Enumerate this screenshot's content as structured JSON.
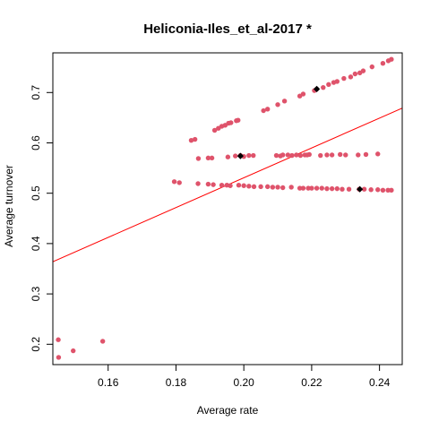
{
  "chart_data": {
    "type": "scatter",
    "title": "Heliconia-Iles_et_al-2017 *",
    "xlabel": "Average rate",
    "ylabel": "Average turnover",
    "xlim": [
      0.1437,
      0.2467
    ],
    "ylim": [
      0.1596,
      0.7788
    ],
    "x_ticks": [
      0.16,
      0.18,
      0.2,
      0.22,
      0.24
    ],
    "x_tick_labels": [
      "0.16",
      "0.18",
      "0.20",
      "0.22",
      "0.24"
    ],
    "y_ticks": [
      0.2,
      0.3,
      0.4,
      0.5,
      0.6,
      0.7
    ],
    "y_tick_labels": [
      "0.2",
      "0.3",
      "0.4",
      "0.5",
      "0.6",
      "0.7"
    ],
    "grid": false,
    "point_color": "#DF536B",
    "highlight_color": "#000000",
    "line_color": "#FF0000",
    "regression_line": {
      "x": [
        0.1437,
        0.2467
      ],
      "y": [
        0.364,
        0.669
      ]
    },
    "points": [
      [
        0.1453,
        0.209
      ],
      [
        0.1454,
        0.174
      ],
      [
        0.1497,
        0.187
      ],
      [
        0.1584,
        0.206
      ],
      [
        0.1845,
        0.605
      ],
      [
        0.1856,
        0.607
      ],
      [
        0.1866,
        0.569
      ],
      [
        0.1895,
        0.57
      ],
      [
        0.1906,
        0.57
      ],
      [
        0.1914,
        0.625
      ],
      [
        0.1925,
        0.629
      ],
      [
        0.1935,
        0.633
      ],
      [
        0.1945,
        0.635
      ],
      [
        0.1953,
        0.572
      ],
      [
        0.1955,
        0.639
      ],
      [
        0.1962,
        0.64
      ],
      [
        0.1975,
        0.574
      ],
      [
        0.1978,
        0.644
      ],
      [
        0.1983,
        0.645
      ],
      [
        0.199,
        0.575
      ],
      [
        0.2,
        0.573
      ],
      [
        0.2015,
        0.575
      ],
      [
        0.2028,
        0.575
      ],
      [
        0.2058,
        0.664
      ],
      [
        0.207,
        0.667
      ],
      [
        0.2096,
        0.575
      ],
      [
        0.21,
        0.676
      ],
      [
        0.2108,
        0.574
      ],
      [
        0.2115,
        0.576
      ],
      [
        0.212,
        0.683
      ],
      [
        0.213,
        0.576
      ],
      [
        0.2142,
        0.575
      ],
      [
        0.2155,
        0.576
      ],
      [
        0.2165,
        0.693
      ],
      [
        0.2167,
        0.575
      ],
      [
        0.2175,
        0.697
      ],
      [
        0.218,
        0.576
      ],
      [
        0.2187,
        0.576
      ],
      [
        0.2193,
        0.577
      ],
      [
        0.2208,
        0.704
      ],
      [
        0.2215,
        0.707
      ],
      [
        0.2226,
        0.575
      ],
      [
        0.2234,
        0.71
      ],
      [
        0.2245,
        0.576
      ],
      [
        0.225,
        0.716
      ],
      [
        0.226,
        0.576
      ],
      [
        0.2265,
        0.72
      ],
      [
        0.2275,
        0.722
      ],
      [
        0.2284,
        0.577
      ],
      [
        0.2295,
        0.728
      ],
      [
        0.23,
        0.576
      ],
      [
        0.2315,
        0.731
      ],
      [
        0.2328,
        0.737
      ],
      [
        0.2337,
        0.576
      ],
      [
        0.2342,
        0.739
      ],
      [
        0.2352,
        0.743
      ],
      [
        0.236,
        0.577
      ],
      [
        0.2378,
        0.751
      ],
      [
        0.2395,
        0.578
      ],
      [
        0.241,
        0.758
      ],
      [
        0.2426,
        0.763
      ],
      [
        0.2435,
        0.766
      ],
      [
        0.1795,
        0.523
      ],
      [
        0.181,
        0.521
      ],
      [
        0.1865,
        0.519
      ],
      [
        0.1895,
        0.518
      ],
      [
        0.191,
        0.517
      ],
      [
        0.1935,
        0.516
      ],
      [
        0.195,
        0.516
      ],
      [
        0.196,
        0.515
      ],
      [
        0.1985,
        0.516
      ],
      [
        0.2,
        0.515
      ],
      [
        0.2015,
        0.514
      ],
      [
        0.203,
        0.513
      ],
      [
        0.205,
        0.513
      ],
      [
        0.207,
        0.513
      ],
      [
        0.2085,
        0.512
      ],
      [
        0.21,
        0.512
      ],
      [
        0.2115,
        0.511
      ],
      [
        0.214,
        0.512
      ],
      [
        0.2165,
        0.51
      ],
      [
        0.2175,
        0.51
      ],
      [
        0.219,
        0.51
      ],
      [
        0.22,
        0.51
      ],
      [
        0.2215,
        0.51
      ],
      [
        0.223,
        0.51
      ],
      [
        0.2245,
        0.509
      ],
      [
        0.226,
        0.509
      ],
      [
        0.2275,
        0.509
      ],
      [
        0.229,
        0.508
      ],
      [
        0.231,
        0.508
      ],
      [
        0.234,
        0.508
      ],
      [
        0.2355,
        0.508
      ],
      [
        0.2375,
        0.507
      ],
      [
        0.2395,
        0.507
      ],
      [
        0.241,
        0.506
      ],
      [
        0.2425,
        0.506
      ],
      [
        0.2435,
        0.506
      ]
    ],
    "highlights": [
      [
        0.199,
        0.574
      ],
      [
        0.2342,
        0.508
      ],
      [
        0.2215,
        0.707
      ]
    ]
  }
}
